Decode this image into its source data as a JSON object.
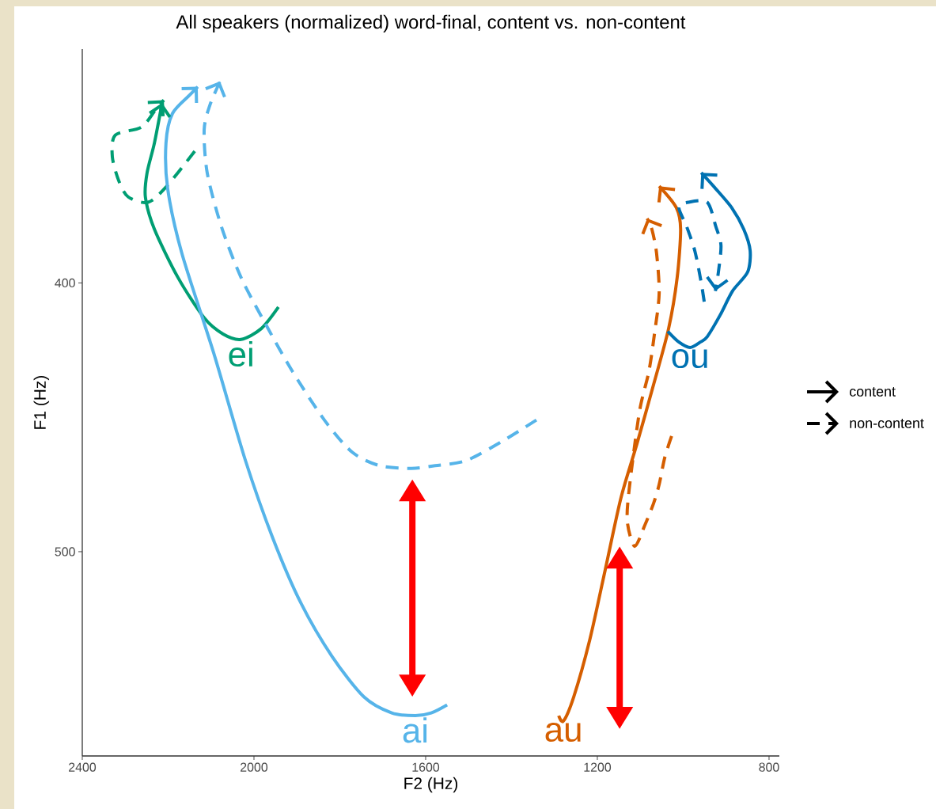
{
  "chart_data": {
    "type": "line",
    "title": "All speakers (normalized) word-final, content vs. non-content",
    "xlabel": "F2 (Hz)",
    "ylabel": "F1 (Hz)",
    "xlim": [
      2400,
      776
    ],
    "ylim": [
      576,
      313
    ],
    "xticks": [
      2400,
      2000,
      1600,
      1200,
      800
    ],
    "yticks": [
      400,
      500
    ],
    "series": [
      {
        "color": "#009e73",
        "line_style": "solid",
        "x": [
          1943,
          1983,
          2030,
          2072,
          2116,
          2177,
          2232,
          2253,
          2249,
          2232,
          2214
        ],
        "values": [
          409,
          417,
          421,
          419,
          413,
          398,
          380,
          368,
          359,
          348,
          333
        ]
      },
      {
        "color": "#009e73",
        "line_style": "dashed",
        "x": [
          2138,
          2203,
          2247,
          2293,
          2315,
          2330,
          2323,
          2262,
          2227,
          2210
        ],
        "values": [
          351,
          364,
          370,
          368,
          362,
          353,
          345,
          342,
          335,
          332
        ]
      },
      {
        "color": "#56b4e9",
        "line_style": "solid",
        "x": [
          1550,
          1587,
          1624,
          1679,
          1744,
          1818,
          1891,
          1956,
          2020,
          2094,
          2168,
          2201,
          2205,
          2190,
          2149,
          2131
        ],
        "values": [
          557,
          560,
          561,
          560,
          554,
          539,
          519,
          495,
          466,
          426,
          389,
          365,
          348,
          337,
          330,
          327
        ]
      },
      {
        "color": "#56b4e9",
        "line_style": "dashed",
        "x": [
          1342,
          1412,
          1504,
          1578,
          1633,
          1707,
          1771,
          1836,
          1910,
          1974,
          2030,
          2076,
          2109,
          2116,
          2103,
          2079
        ],
        "values": [
          451,
          458,
          466,
          468,
          469,
          468,
          463,
          451,
          433,
          415,
          398,
          379,
          359,
          343,
          334,
          325
        ]
      },
      {
        "color": "#d55e00",
        "line_style": "solid",
        "x": [
          1290,
          1279,
          1255,
          1218,
          1182,
          1145,
          1108,
          1071,
          1034,
          1014,
          1006,
          1016,
          1056
        ],
        "values": [
          561,
          563,
          554,
          533,
          507,
          480,
          460,
          439,
          417,
          398,
          380,
          372,
          364
        ]
      },
      {
        "color": "#d55e00",
        "line_style": "dashed",
        "x": [
          1027,
          1043,
          1056,
          1069,
          1089,
          1113,
          1130,
          1126,
          1102,
          1080,
          1067,
          1056,
          1062,
          1073,
          1084
        ],
        "values": [
          457,
          465,
          475,
          482,
          490,
          498,
          489,
          477,
          448,
          433,
          419,
          404,
          389,
          380,
          376
        ]
      },
      {
        "color": "#0072b2",
        "line_style": "solid",
        "x": [
          1036,
          1010,
          984,
          960,
          944,
          914,
          885,
          850,
          844,
          859,
          887,
          924,
          958
        ],
        "values": [
          418,
          422,
          424,
          422,
          420,
          412,
          403,
          396,
          388,
          380,
          372,
          365,
          359
        ]
      },
      {
        "color": "#0072b2",
        "line_style": "dashed",
        "x": [
          951,
          959,
          973,
          992,
          1010,
          988,
          944,
          924,
          912,
          918,
          925
        ],
        "values": [
          407,
          399,
          388,
          379,
          372,
          370,
          370,
          379,
          386,
          396,
          403
        ]
      }
    ],
    "annotations": [
      {
        "text": "ei",
        "x": 2030,
        "y": 421
      },
      {
        "text": "ai",
        "x": 1624,
        "y": 561
      },
      {
        "text": "au",
        "x": 1279,
        "y": 563
      },
      {
        "text": "ou",
        "x": 984,
        "y": 424
      },
      "content",
      "non-content"
    ]
  }
}
